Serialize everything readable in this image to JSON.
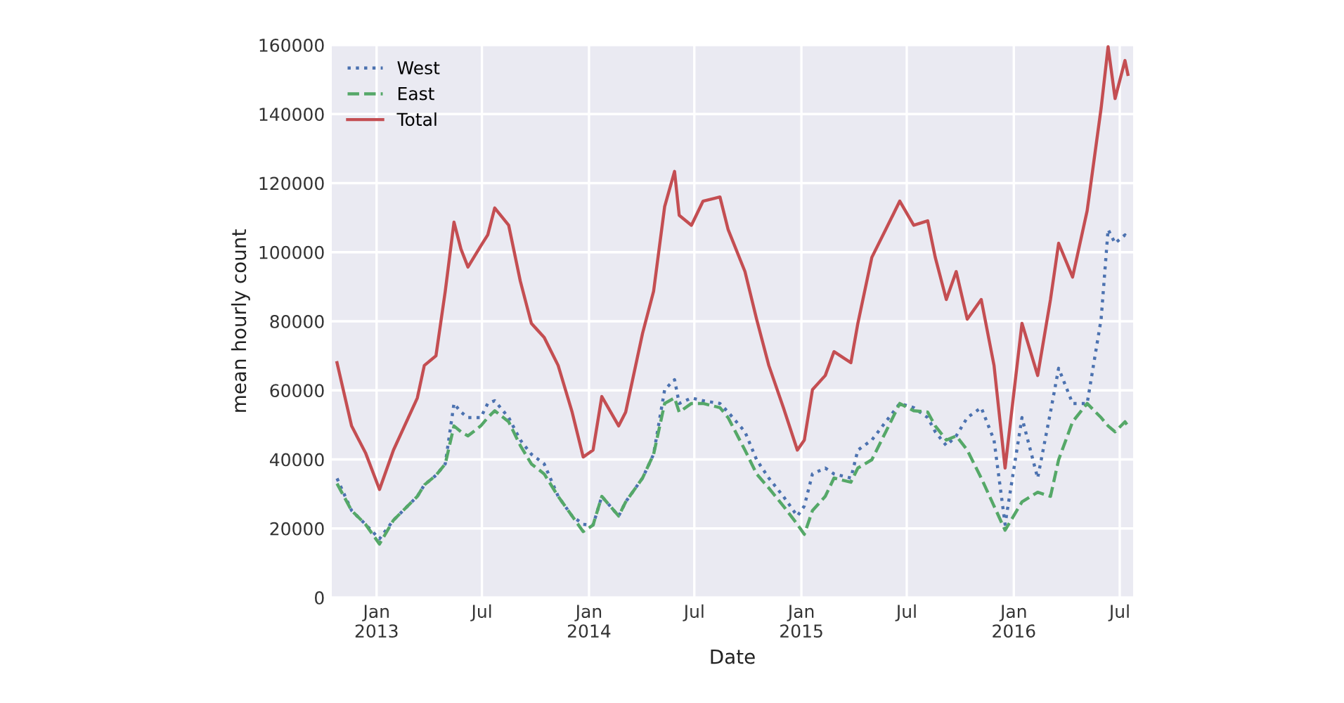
{
  "chart_data": {
    "type": "line",
    "xlabel": "Date",
    "ylabel": "mean hourly count",
    "x": [
      "2012-10-25",
      "2012-11-19",
      "2012-12-13",
      "2013-01-06",
      "2013-01-30",
      "2013-03-12",
      "2013-03-24",
      "2013-04-13",
      "2013-04-29",
      "2013-05-14",
      "2013-05-26",
      "2013-06-07",
      "2013-06-29",
      "2013-07-11",
      "2013-07-23",
      "2013-08-16",
      "2013-09-05",
      "2013-09-24",
      "2013-10-16",
      "2013-11-09",
      "2013-12-03",
      "2013-12-22",
      "2014-01-08",
      "2014-01-23",
      "2014-02-21",
      "2014-03-05",
      "2014-04-03",
      "2014-04-22",
      "2014-05-11",
      "2014-05-28",
      "2014-06-05",
      "2014-06-26",
      "2014-07-16",
      "2014-08-14",
      "2014-08-28",
      "2014-09-26",
      "2014-10-16",
      "2014-11-06",
      "2014-12-01",
      "2014-12-25",
      "2015-01-06",
      "2015-01-20",
      "2015-02-11",
      "2015-02-26",
      "2015-03-27",
      "2015-04-08",
      "2015-05-02",
      "2015-05-26",
      "2015-06-19",
      "2015-07-13",
      "2015-08-06",
      "2015-08-19",
      "2015-09-07",
      "2015-09-24",
      "2015-10-13",
      "2015-11-06",
      "2015-11-28",
      "2015-12-17",
      "2016-01-15",
      "2016-02-11",
      "2016-03-04",
      "2016-03-18",
      "2016-04-11",
      "2016-05-06",
      "2016-05-30",
      "2016-06-11",
      "2016-06-23",
      "2016-07-10",
      "2016-07-15"
    ],
    "series": [
      {
        "name": "West",
        "color": "#4c72b0",
        "line_style": "dotted",
        "values": [
          34500,
          25200,
          21200,
          17000,
          22400,
          29300,
          32600,
          35400,
          38700,
          56200,
          53700,
          52100,
          52100,
          56200,
          57000,
          52100,
          45600,
          41500,
          38700,
          29300,
          23600,
          21200,
          21000,
          29300,
          23600,
          27700,
          34600,
          41500,
          60200,
          63100,
          56200,
          57800,
          57000,
          56200,
          53700,
          48000,
          39900,
          34600,
          29300,
          23600,
          26500,
          35800,
          37500,
          35800,
          34600,
          42700,
          45600,
          50900,
          56200,
          55000,
          52100,
          48000,
          44000,
          46800,
          52100,
          55000,
          45600,
          21200,
          52100,
          34600,
          53700,
          66400,
          56200,
          56200,
          80600,
          106600,
          102600,
          105000,
          103800
        ]
      },
      {
        "name": "East",
        "color": "#55a868",
        "line_style": "dashed",
        "values": [
          33000,
          25200,
          21200,
          15500,
          22400,
          29300,
          32600,
          35400,
          38700,
          49700,
          48000,
          46800,
          49700,
          52100,
          54100,
          50900,
          44000,
          38700,
          35800,
          29300,
          23600,
          19100,
          21000,
          29300,
          23600,
          27700,
          34600,
          41500,
          56200,
          57800,
          53700,
          56200,
          56200,
          55000,
          52100,
          42700,
          35800,
          31700,
          26500,
          21200,
          18300,
          25200,
          29300,
          34600,
          33400,
          37500,
          39900,
          48000,
          56200,
          54100,
          53700,
          49700,
          45600,
          46800,
          42700,
          34600,
          26500,
          19500,
          27700,
          30500,
          29300,
          39900,
          50900,
          56200,
          52100,
          49700,
          48000,
          50900,
          49700
        ]
      },
      {
        "name": "Total",
        "color": "#c44e52",
        "line_style": "solid",
        "values": [
          68000,
          49700,
          41900,
          31300,
          42700,
          57800,
          67200,
          70000,
          88700,
          108700,
          100900,
          95700,
          101800,
          105000,
          112800,
          107800,
          91600,
          79400,
          75300,
          67200,
          53700,
          40700,
          42700,
          58200,
          49700,
          53700,
          76500,
          88700,
          113200,
          123400,
          110700,
          107800,
          114800,
          116000,
          106600,
          94400,
          80600,
          67200,
          55000,
          42700,
          45600,
          60200,
          64300,
          71200,
          68000,
          79400,
          98500,
          106600,
          114800,
          107800,
          109100,
          98500,
          86300,
          94400,
          80600,
          86300,
          67200,
          37500,
          79400,
          64300,
          86300,
          102600,
          92800,
          112000,
          141700,
          159500,
          144500,
          155500,
          151500
        ]
      }
    ],
    "xlim": [
      "2012-10-16",
      "2016-07-24"
    ],
    "xticks": [
      {
        "value": "2013-01-01",
        "label": "Jan\n2013"
      },
      {
        "value": "2013-07-01",
        "label": "Jul"
      },
      {
        "value": "2014-01-01",
        "label": "Jan\n2014"
      },
      {
        "value": "2014-07-01",
        "label": "Jul"
      },
      {
        "value": "2015-01-01",
        "label": "Jan\n2015"
      },
      {
        "value": "2015-07-01",
        "label": "Jul"
      },
      {
        "value": "2016-01-01",
        "label": "Jan\n2016"
      },
      {
        "value": "2016-07-01",
        "label": "Jul"
      }
    ],
    "ylim": [
      0,
      160000
    ],
    "yticks": [
      0,
      20000,
      40000,
      60000,
      80000,
      100000,
      120000,
      140000,
      160000
    ],
    "grid": true,
    "legend": "top left"
  }
}
